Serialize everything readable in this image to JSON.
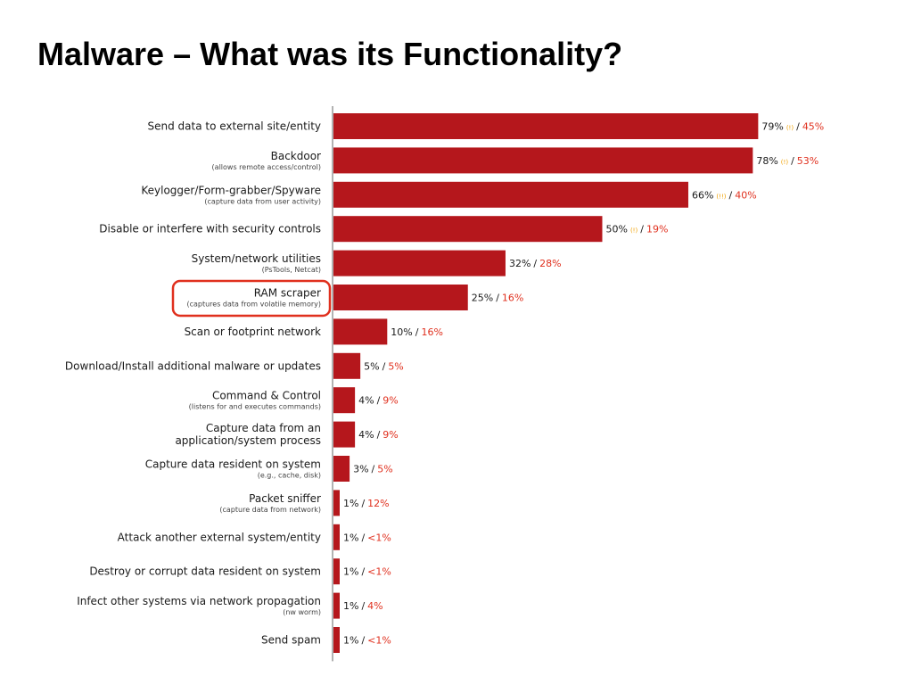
{
  "title": "Malware – What was its Functionality?",
  "colors": {
    "bar": "#b5171c",
    "secondary_text": "#e0301e",
    "highlight_box": "#e0301e",
    "marker": "#f0a000",
    "axis": "#999999",
    "label_text": "#1a1a1a"
  },
  "chart_data": {
    "type": "bar",
    "orientation": "horizontal",
    "xlim": [
      0,
      100
    ],
    "grid": false,
    "legend": "none",
    "highlighted_category": "RAM scraper",
    "categories": [
      "Send data to external site/entity",
      "Backdoor",
      "Keylogger/Form-grabber/Spyware",
      "Disable or interfere with security controls",
      "System/network utilities",
      "RAM scraper",
      "Scan or footprint network",
      "Download/Install additional malware or updates",
      "Command & Control",
      "Capture data from an application/system process",
      "Capture data resident on system",
      "Packet sniffer",
      "Attack another external system/entity",
      "Destroy or corrupt data resident on system",
      "Infect other systems via network propagation",
      "Send spam"
    ],
    "label_lines": [
      [
        "Send data to external site/entity"
      ],
      [
        "Backdoor"
      ],
      [
        "Keylogger/Form-grabber/Spyware"
      ],
      [
        "Disable or interfere with security controls"
      ],
      [
        "System/network utilities"
      ],
      [
        "RAM scraper"
      ],
      [
        "Scan or footprint network"
      ],
      [
        "Download/Install additional malware or updates"
      ],
      [
        "Command & Control"
      ],
      [
        "Capture data from an",
        "application/system process"
      ],
      [
        "Capture data resident on system"
      ],
      [
        "Packet sniffer"
      ],
      [
        "Attack another external system/entity"
      ],
      [
        "Destroy or corrupt data resident on system"
      ],
      [
        "Infect other systems via network propagation"
      ],
      [
        "Send spam"
      ]
    ],
    "sublabels": [
      "",
      "(allows remote access/control)",
      "(capture data from user activity)",
      "",
      "(PsTools, Netcat)",
      "(captures data from volatile memory)",
      "",
      "",
      "(listens for and executes commands)",
      "",
      "(e.g., cache, disk)",
      "(capture data from network)",
      "",
      "",
      "(nw worm)",
      ""
    ],
    "values": [
      79,
      78,
      66,
      50,
      32,
      25,
      10,
      5,
      4,
      4,
      3,
      1,
      1,
      1,
      1,
      1
    ],
    "primary_labels": [
      "79%",
      "78%",
      "66%",
      "50%",
      "32%",
      "25%",
      "10%",
      "5%",
      "4%",
      "4%",
      "3%",
      "1%",
      "1%",
      "1%",
      "1%",
      "1%"
    ],
    "secondary_labels": [
      "45%",
      "53%",
      "40%",
      "19%",
      "28%",
      "16%",
      "16%",
      "5%",
      "9%",
      "9%",
      "5%",
      "12%",
      "<1%",
      "<1%",
      "4%",
      "<1%"
    ],
    "markers": [
      "(!)",
      "(!)",
      "(!!)",
      "(!)",
      "",
      "",
      "",
      "",
      "",
      "",
      "",
      "",
      "",
      "",
      "",
      ""
    ]
  }
}
